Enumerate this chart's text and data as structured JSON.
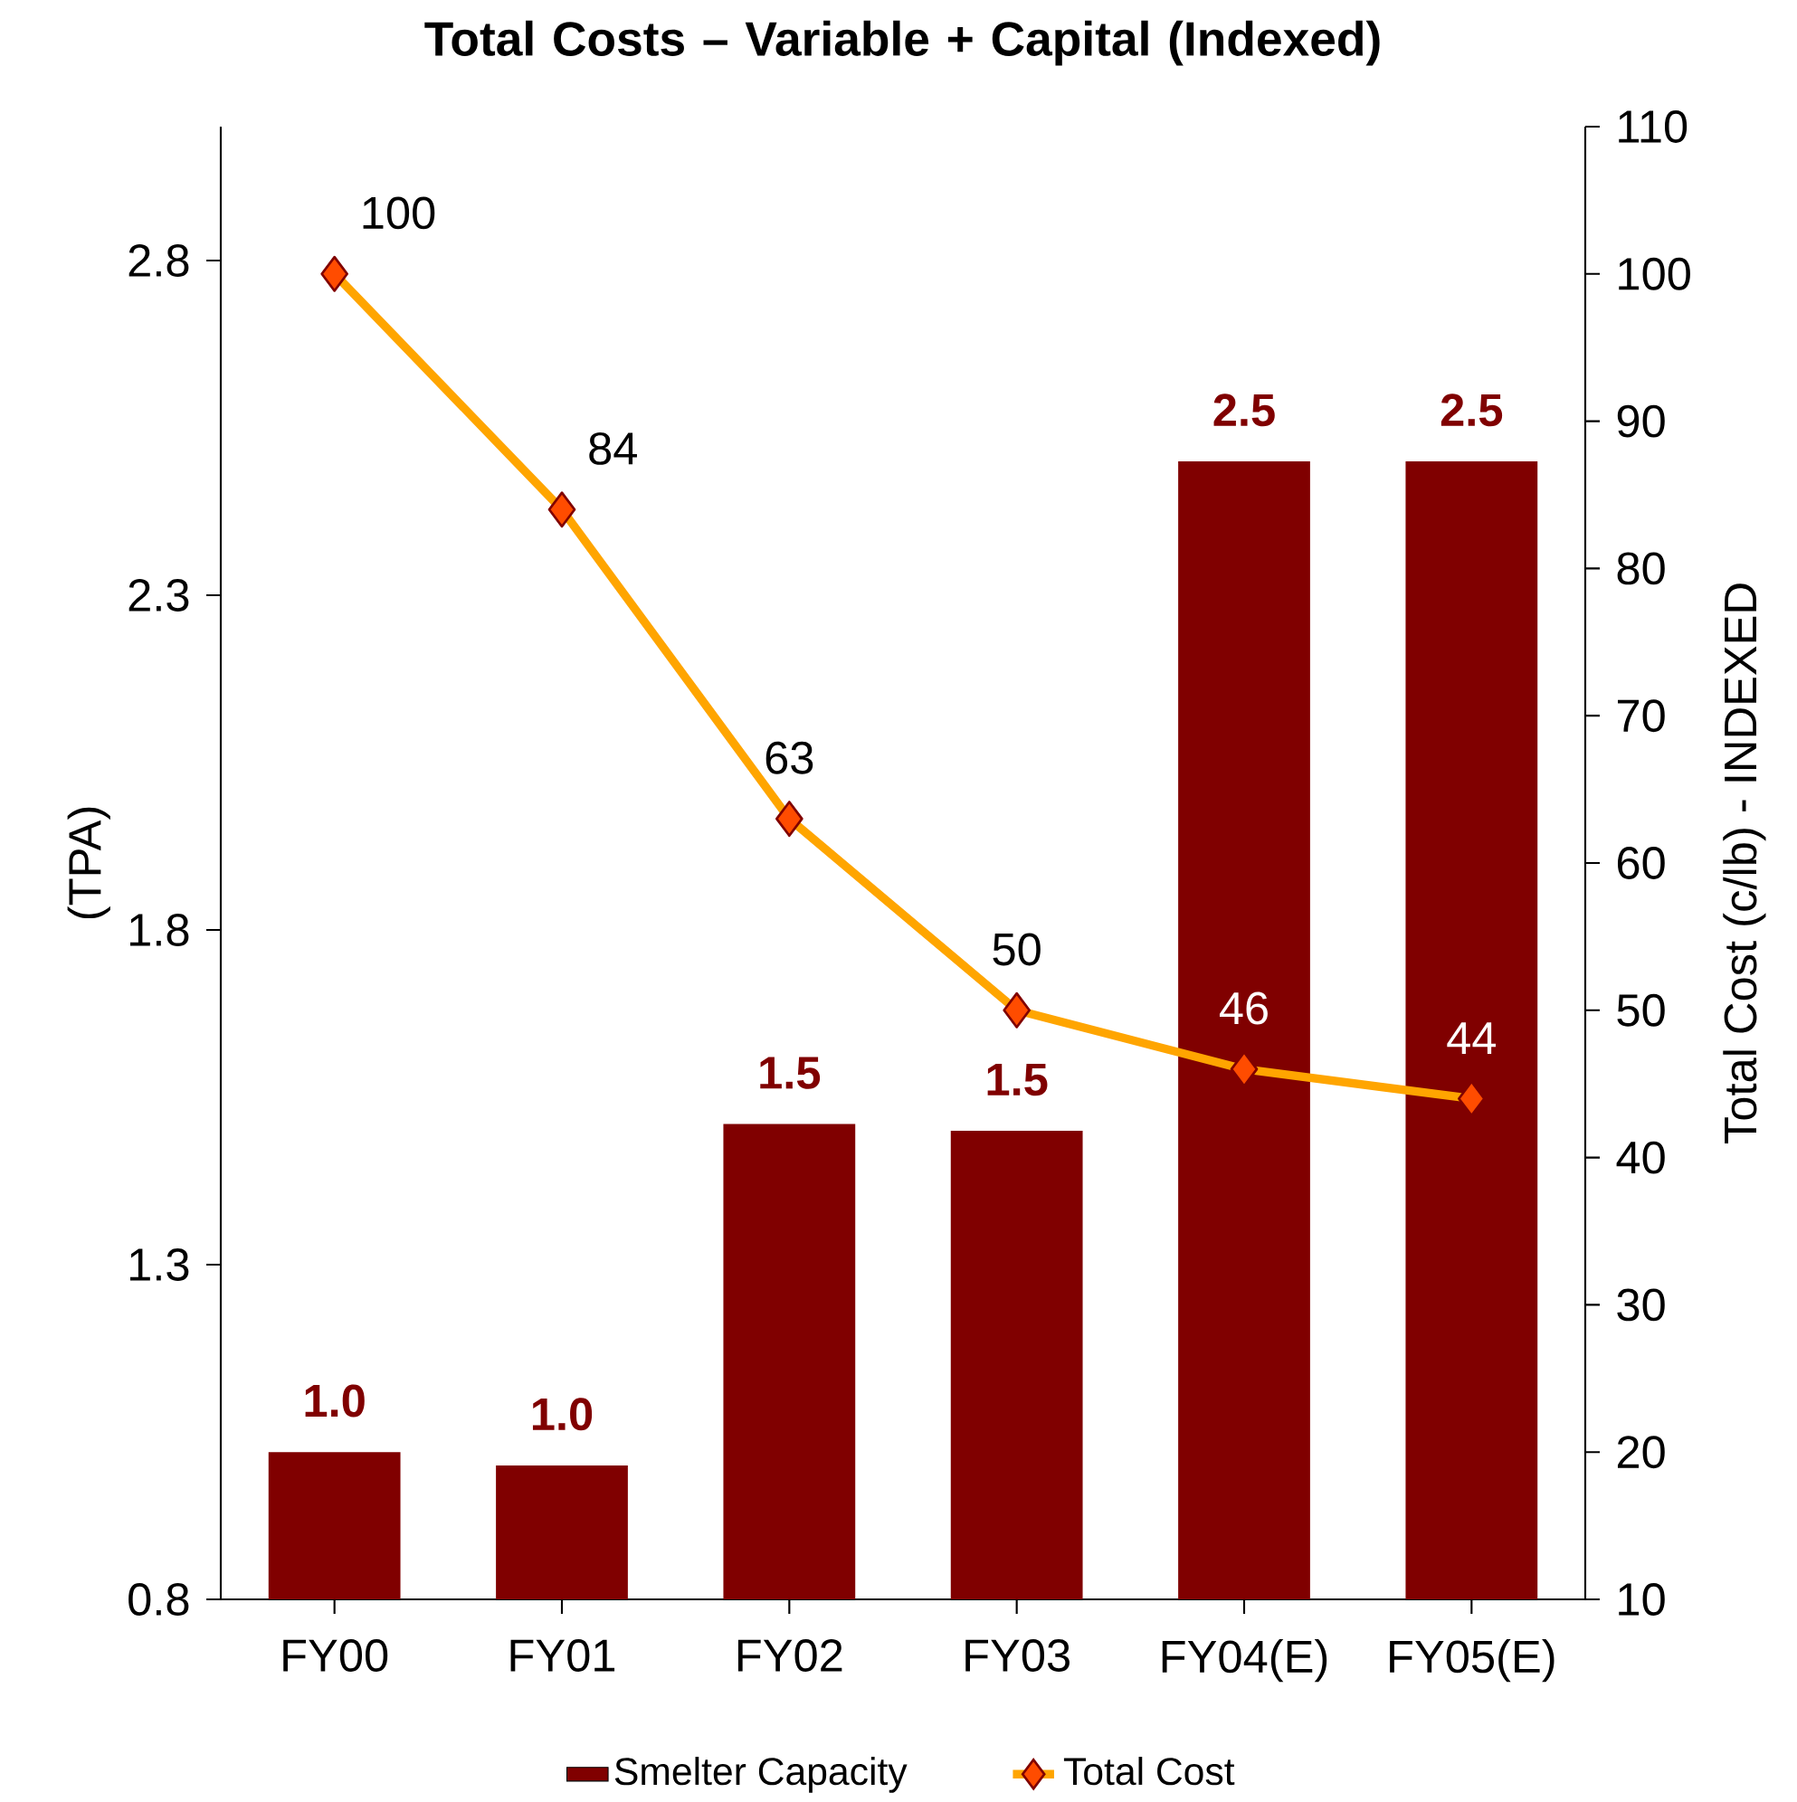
{
  "chart_data": {
    "type": "bar",
    "title": "Total Costs – Variable + Capital (Indexed)",
    "ylabel": "(TPA)",
    "y2label": "Total Cost (c/lb) - INDEXED",
    "categories": [
      "FY00",
      "FY01",
      "FY02",
      "FY03",
      "FY04(E)",
      "FY05(E)"
    ],
    "series": [
      {
        "name": "Smelter Capacity",
        "color": "#800000",
        "values": [
          1.02,
          1.0,
          1.51,
          1.5,
          2.5,
          2.5
        ],
        "value_labels": [
          "1.0",
          "1.0",
          "1.5",
          "1.5",
          "2.5",
          "2.5"
        ]
      },
      {
        "name": "Total Cost",
        "type": "line",
        "axis": "y2",
        "color": "#FFA500",
        "values": [
          100,
          84,
          63,
          50,
          46,
          44
        ]
      }
    ],
    "ylim": [
      0.8,
      3.0
    ],
    "yticks": [
      0.8,
      1.3,
      1.8,
      2.3,
      2.8
    ],
    "y2lim": [
      10,
      110
    ],
    "y2ticks": [
      10,
      20,
      30,
      40,
      50,
      60,
      70,
      80,
      90,
      100,
      110
    ],
    "legend": "bottom",
    "data_labels": true,
    "marker": "diamond",
    "line_style": "solid",
    "grid": false
  }
}
